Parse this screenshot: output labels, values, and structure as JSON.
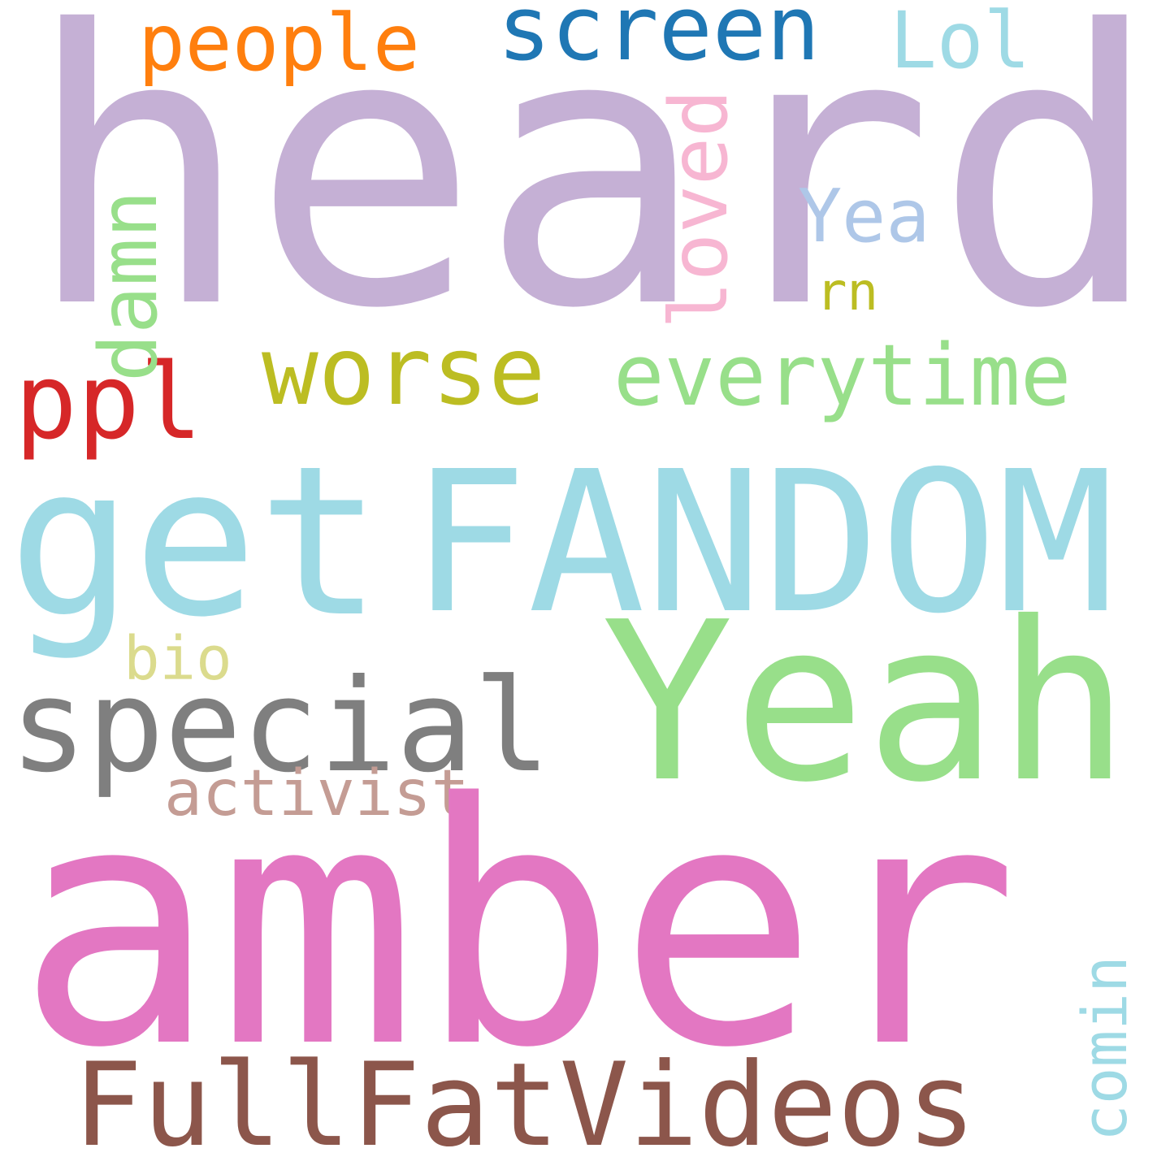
{
  "words": {
    "heard": {
      "text": "heard",
      "color": "#c5b0d5"
    },
    "amber": {
      "text": "amber",
      "color": "#e377c2"
    },
    "fandom": {
      "text": "FANDOM",
      "color": "#9edae5"
    },
    "yeah": {
      "text": "Yeah",
      "color": "#98df8a"
    },
    "get": {
      "text": "get",
      "color": "#9edae5"
    },
    "fullfatvideos": {
      "text": "FullFatVideos",
      "color": "#8c564b"
    },
    "special": {
      "text": "special",
      "color": "#7f7f7f"
    },
    "worse": {
      "text": "worse",
      "color": "#bcbd22"
    },
    "everytime": {
      "text": "everytime",
      "color": "#98df8a"
    },
    "ppl": {
      "text": "ppl",
      "color": "#d62728"
    },
    "screen": {
      "text": "screen",
      "color": "#1f77b4"
    },
    "people": {
      "text": "people",
      "color": "#ff7f0e"
    },
    "lol": {
      "text": "Lol",
      "color": "#9edae5"
    },
    "damn": {
      "text": "damn",
      "color": "#98df8a"
    },
    "loved": {
      "text": "loved",
      "color": "#f7b6d2"
    },
    "yea": {
      "text": "Yea",
      "color": "#aec7e8"
    },
    "comin": {
      "text": "comin",
      "color": "#9edae5"
    },
    "activist": {
      "text": "activist",
      "color": "#c49c94"
    },
    "bio": {
      "text": "bio",
      "color": "#dbdb8d"
    },
    "rn": {
      "text": "rn",
      "color": "#bcbd22"
    }
  }
}
